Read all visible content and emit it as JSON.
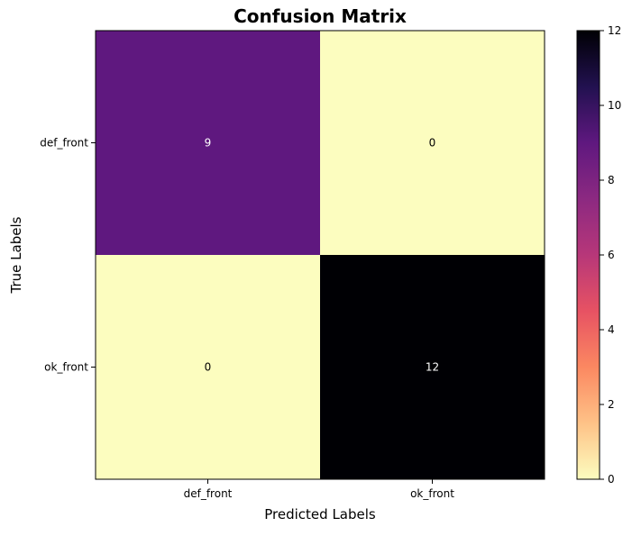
{
  "chart_data": {
    "type": "heatmap",
    "title": "Confusion Matrix",
    "xlabel": "Predicted Labels",
    "ylabel": "True Labels",
    "x_categories": [
      "def_front",
      "ok_front"
    ],
    "y_categories": [
      "def_front",
      "ok_front"
    ],
    "values": [
      [
        9,
        0
      ],
      [
        0,
        12
      ]
    ],
    "colormap": "magma_r",
    "colorbar": {
      "range": [
        0,
        12
      ],
      "ticks": [
        "0",
        "2",
        "4",
        "6",
        "8",
        "10",
        "12"
      ]
    },
    "grid": false
  }
}
